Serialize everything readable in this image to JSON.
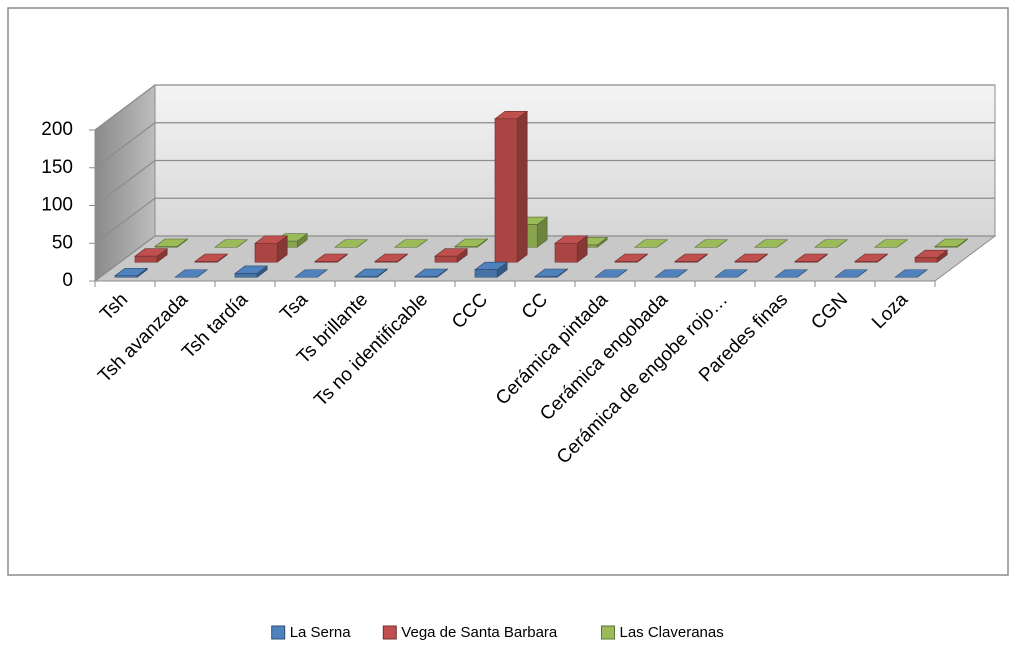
{
  "chart_data": {
    "type": "bar3d",
    "categories": [
      "Tsh",
      "Tsh avanzada",
      "Tsh tardía",
      "Tsa",
      "Ts brillante",
      "Ts no identificable",
      "CCC",
      "CC",
      "Cerámica pintada",
      "Cerámica engobada",
      "Cerámica de engobe rojo…",
      "Paredes finas",
      "CGN",
      "Loza"
    ],
    "series": [
      {
        "name": "La Serna",
        "color": "#4f81bd",
        "values": [
          2,
          0,
          5,
          0,
          1,
          1,
          10,
          1,
          0,
          0,
          0,
          0,
          0,
          0
        ]
      },
      {
        "name": "Vega de Santa Barbara",
        "color": "#c0504d",
        "values": [
          8,
          1,
          25,
          1,
          1,
          8,
          190,
          25,
          1,
          1,
          1,
          1,
          1,
          6
        ]
      },
      {
        "name": "Las Claveranas",
        "color": "#9bbb59",
        "values": [
          1,
          0,
          8,
          0,
          0,
          1,
          30,
          3,
          0,
          0,
          0,
          0,
          0,
          1
        ]
      }
    ],
    "ylim": [
      0,
      200
    ],
    "yticks": [
      0,
      50,
      100,
      150,
      200
    ],
    "grid": true,
    "legend": "bottom"
  }
}
